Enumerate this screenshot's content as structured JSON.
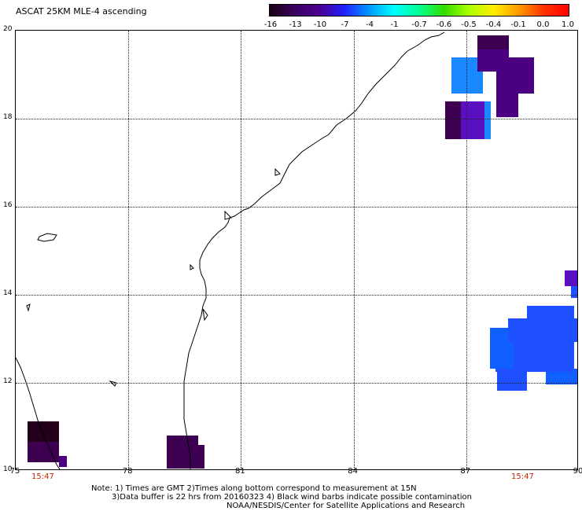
{
  "title": "ASCAT 25KM MLE-4 ascending",
  "colorbar": {
    "labels": [
      "-16",
      "-13",
      "-10",
      "-7",
      "-4",
      "-1",
      "-0.7",
      "-0.6",
      "-0.5",
      "-0.4",
      "-0.1",
      "0.0",
      "1.0"
    ],
    "colors": [
      "#1a0010",
      "#3a0060",
      "#4b0090",
      "#2020ff",
      "#0099ff",
      "#00ffff",
      "#00ff90",
      "#33dd00",
      "#aaff00",
      "#ffee00",
      "#ff9900",
      "#ff3300",
      "#ff0000"
    ]
  },
  "map": {
    "lon_labels": [
      "75",
      "78",
      "81",
      "84",
      "87",
      "90"
    ],
    "lat_labels": [
      "20",
      "18",
      "16",
      "14",
      "12",
      "10"
    ],
    "time_labels": [
      "15:47",
      "15:47"
    ],
    "palette": {
      "darkest": "#24001c",
      "dark_purple": "#3d0050",
      "indigo": "#4a0080",
      "violet": "#5a10c0",
      "blue": "#1e50ff",
      "blue2": "#1060ff",
      "light_blue": "#1a88ff"
    }
  },
  "notes": {
    "line1": "Note: 1) Times are GMT 2)Times along bottom correspond to measurement at 15N",
    "line2": "3)Data buffer is 22 hrs from 20160323 4) Black wind barbs indicate possible contamination",
    "line3": "NOAA/NESDIS/Center for Satellite Applications and Research"
  }
}
